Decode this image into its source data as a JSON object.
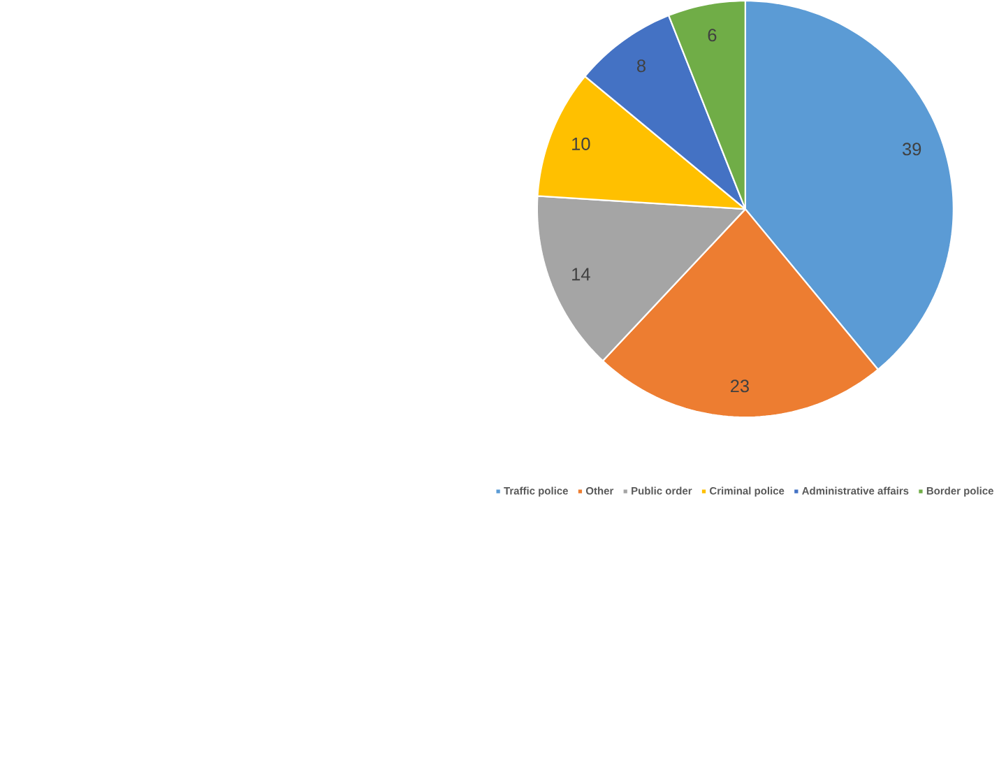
{
  "chart_data": {
    "type": "pie",
    "categories": [
      "Traffic police",
      "Other",
      "Public order",
      "Criminal police",
      "Administrative affairs",
      "Border police"
    ],
    "values": [
      39,
      23,
      14,
      10,
      8,
      6
    ],
    "colors": [
      "#5b9bd5",
      "#ed7d31",
      "#a5a5a5",
      "#ffc000",
      "#4472c4",
      "#70ad47"
    ],
    "data_labels": true,
    "legend": "bottom"
  }
}
